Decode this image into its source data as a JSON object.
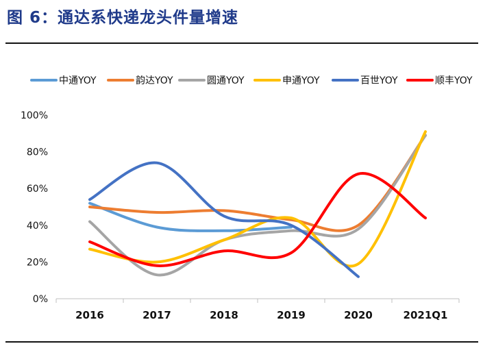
{
  "figure_title": "图 6：通达系快递龙头件量增速",
  "chart_data": {
    "type": "line",
    "categories": [
      "2016",
      "2017",
      "2018",
      "2019",
      "2020",
      "2021Q1"
    ],
    "yticks": [
      "0%",
      "20%",
      "40%",
      "60%",
      "80%",
      "100%"
    ],
    "ylim": [
      0,
      100
    ],
    "smooth": true,
    "grid": false,
    "legend_position": "top",
    "series": [
      {
        "name": "中通YOY",
        "color": "#5b9bd5",
        "values": [
          52,
          39,
          37,
          39,
          null,
          null
        ]
      },
      {
        "name": "韵达YOY",
        "color": "#ed7d31",
        "values": [
          50,
          47,
          48,
          43,
          40,
          89
        ]
      },
      {
        "name": "圆通YOY",
        "color": "#a5a5a5",
        "values": [
          42,
          13,
          32,
          37,
          38,
          89
        ]
      },
      {
        "name": "申通YOY",
        "color": "#ffc000",
        "values": [
          27,
          20,
          32,
          44,
          19,
          91
        ]
      },
      {
        "name": "百世YOY",
        "color": "#4472c4",
        "values": [
          54,
          74,
          45,
          40,
          12,
          null
        ]
      },
      {
        "name": "顺丰YOY",
        "color": "#ff0000",
        "values": [
          31,
          18,
          26,
          25,
          68,
          44
        ]
      }
    ]
  }
}
